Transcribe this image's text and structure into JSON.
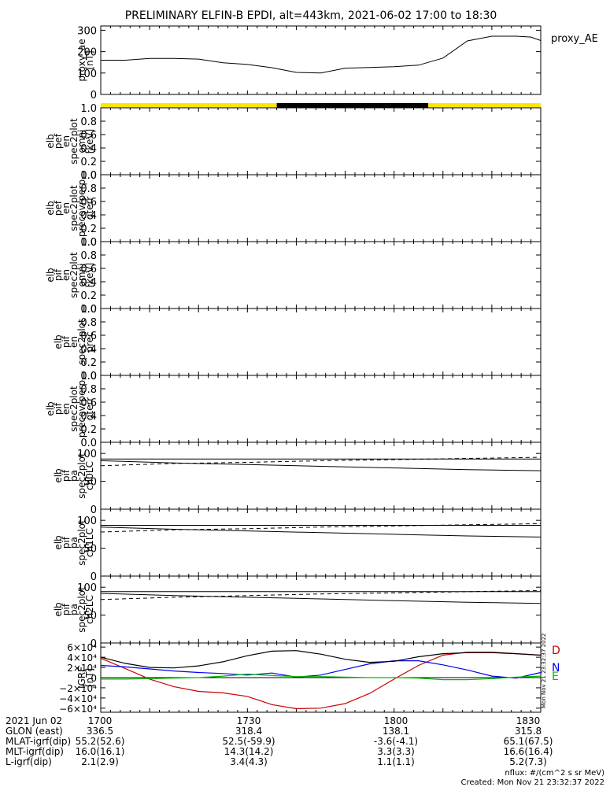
{
  "title": "PRELIMINARY ELFIN-B EPDI, alt=443km, 2021-06-02 17:00 to 18:30",
  "colors": {
    "day": "#ffe600",
    "night": "#000000",
    "D": "#cc0000",
    "N": "#0000ee",
    "E": "#00bb00",
    "line": "#000000"
  },
  "chart_data": [
    {
      "type": "line",
      "panel": "proxy_ae",
      "ylabel_lines": [
        "proxy_ae",
        "[nT]"
      ],
      "legend": "proxy_AE",
      "ylim": [
        0,
        320
      ],
      "yticks": [
        "300",
        "200",
        "100",
        "0"
      ],
      "x": [
        0,
        5,
        10,
        15,
        20,
        25,
        30,
        35,
        40,
        45,
        50,
        55,
        60,
        65,
        70,
        75,
        80,
        82,
        85,
        88,
        90
      ],
      "series": [
        {
          "values": [
            160,
            160,
            168,
            168,
            165,
            148,
            140,
            125,
            103,
            100,
            123,
            126,
            130,
            137,
            170,
            250,
            272,
            272,
            272,
            268,
            252
          ]
        }
      ]
    },
    {
      "type": "spectrogram",
      "panel": "sunlit_bar",
      "segments": [
        {
          "start": 0,
          "end": 36,
          "state": "day"
        },
        {
          "start": 36,
          "end": 67,
          "state": "night"
        },
        {
          "start": 67,
          "end": 90,
          "state": "day"
        }
      ]
    },
    {
      "type": "spectrogram",
      "panel": "pef_en_omni",
      "ylabel_lines": [
        "elb",
        "pef",
        "en",
        "spec2plot",
        "omni",
        "[keV]"
      ],
      "ylim": [
        0,
        1.0
      ],
      "yticks": [
        "1.0",
        "0.8",
        "0.6",
        "0.4",
        "0.2",
        "0.0"
      ]
    },
    {
      "type": "spectrogram",
      "panel": "pef_en_precovrperp",
      "ylabel_lines": [
        "elb",
        "pef",
        "en",
        "spec2plot",
        "precovrperp",
        "gterr"
      ],
      "ylim": [
        0,
        1.0
      ],
      "yticks": [
        "1.0",
        "0.8",
        "0.6",
        "0.4",
        "0.2",
        "0.0"
      ]
    },
    {
      "type": "spectrogram",
      "panel": "pif_en_omni",
      "ylabel_lines": [
        "elb",
        "pif",
        "en",
        "spec2plot",
        "omni",
        "[keV]"
      ],
      "ylim": [
        0,
        1.0
      ],
      "yticks": [
        "1.0",
        "0.8",
        "0.6",
        "0.4",
        "0.2",
        "0.0"
      ]
    },
    {
      "type": "spectrogram",
      "panel": "pif_en_prec",
      "ylabel_lines": [
        "elb",
        "pif",
        "en",
        "spec2plot",
        "prec"
      ],
      "ylim": [
        0,
        1.0
      ],
      "yticks": [
        "1.0",
        "0.8",
        "0.6",
        "0.4",
        "0.2",
        "0.0"
      ]
    },
    {
      "type": "spectrogram",
      "panel": "pif_en_precovrperp",
      "ylabel_lines": [
        "elb",
        "pif",
        "en",
        "spec2plot",
        "precovrperp",
        "gterr"
      ],
      "ylim": [
        0,
        1.0
      ],
      "yticks": [
        "1.0",
        "0.8",
        "0.6",
        "0.4",
        "0.2",
        "0.0"
      ]
    },
    {
      "type": "line",
      "panel": "pif_pa_ch0LC",
      "ylabel_lines": [
        "elb",
        "pif",
        "pa",
        "spec2plot",
        "ch0LC"
      ],
      "ylim": [
        0,
        120
      ],
      "yticks": [
        "100",
        "50",
        "0"
      ],
      "x": [
        0,
        90
      ],
      "series": [
        {
          "values": [
            90,
            90
          ]
        },
        {
          "x": [
            0,
            15,
            30,
            45,
            60,
            75,
            90
          ],
          "values": [
            87,
            83,
            80,
            77,
            74,
            71,
            69
          ]
        },
        {
          "x": [
            0,
            15,
            30,
            45,
            60,
            75,
            90
          ],
          "values": [
            78,
            82,
            84,
            87,
            89,
            91,
            93
          ],
          "dash": true
        }
      ]
    },
    {
      "type": "line",
      "panel": "pif_pa_ch1LC",
      "ylabel_lines": [
        "elb",
        "pif",
        "pa",
        "spec2plot",
        "ch1LC"
      ],
      "ylim": [
        0,
        120
      ],
      "yticks": [
        "100",
        "50",
        "0"
      ],
      "x": [
        0,
        90
      ],
      "series": [
        {
          "values": [
            91,
            91
          ]
        },
        {
          "x": [
            0,
            15,
            30,
            45,
            60,
            75,
            90
          ],
          "values": [
            88,
            84,
            81,
            78,
            75,
            72,
            70
          ]
        },
        {
          "x": [
            0,
            15,
            30,
            45,
            60,
            75,
            90
          ],
          "values": [
            79,
            83,
            85,
            88,
            90,
            92,
            94
          ],
          "dash": true
        }
      ]
    },
    {
      "type": "line",
      "panel": "pif_pa_ch2LC",
      "ylabel_lines": [
        "elb",
        "pif",
        "pa",
        "spec2plot",
        "ch2LC"
      ],
      "ylim": [
        0,
        120
      ],
      "yticks": [
        "100",
        "50",
        "0"
      ],
      "x": [
        0,
        90
      ],
      "series": [
        {
          "values": [
            92,
            92
          ]
        },
        {
          "x": [
            0,
            15,
            30,
            45,
            60,
            75,
            90
          ],
          "values": [
            89,
            85,
            82,
            79,
            76,
            73,
            71
          ]
        },
        {
          "x": [
            0,
            15,
            30,
            45,
            60,
            75,
            90
          ],
          "values": [
            78,
            82,
            85,
            88,
            90,
            92,
            94
          ],
          "dash": true
        }
      ]
    },
    {
      "type": "line",
      "panel": "igrf",
      "ylabel_lines": [
        "IGRF",
        "[nT]"
      ],
      "ylim": [
        -68000,
        68000
      ],
      "yticks": [
        "6×10⁴",
        "4×10⁴",
        "2×10⁴",
        "0",
        "−2×10⁴",
        "−4×10⁴",
        "−6×10⁴"
      ],
      "ytick_values": [
        60000,
        40000,
        20000,
        0,
        -20000,
        -40000,
        -60000
      ],
      "legend_labels": [
        "D",
        "N",
        "E"
      ],
      "side_text": "Mon Nov 21 23:32:37 2022",
      "series": [
        {
          "name": "D",
          "x": [
            0,
            5,
            10,
            15,
            20,
            25,
            30,
            35,
            40,
            45,
            50,
            55,
            60,
            65,
            70,
            75,
            80,
            85,
            90
          ],
          "values": [
            38000,
            18000,
            -3000,
            -18000,
            -27000,
            -30000,
            -37000,
            -53000,
            -61000,
            -60000,
            -51000,
            -31000,
            -3000,
            24000,
            44000,
            50000,
            50000,
            47000,
            44000
          ]
        },
        {
          "name": "N",
          "x": [
            0,
            5,
            10,
            15,
            20,
            25,
            30,
            35,
            40,
            45,
            50,
            55,
            60,
            65,
            70,
            75,
            80,
            85,
            90
          ],
          "values": [
            24000,
            21000,
            17000,
            13000,
            10000,
            8000,
            5000,
            9000,
            1000,
            5000,
            16000,
            27000,
            33000,
            33000,
            25000,
            15000,
            3000,
            -1000,
            10000
          ]
        },
        {
          "name": "E",
          "x": [
            0,
            5,
            10,
            15,
            20,
            25,
            30,
            35,
            40,
            45,
            50,
            55,
            60,
            65,
            70,
            75,
            80,
            85,
            90
          ],
          "values": [
            -3000,
            -3000,
            -2000,
            -1000,
            0,
            3000,
            7000,
            4000,
            2000,
            2000,
            1000,
            0,
            0,
            -1000,
            -4000,
            -4000,
            -2000,
            1000,
            3000
          ]
        },
        {
          "name": "",
          "x": [
            0,
            5,
            10,
            15,
            20,
            25,
            30,
            35,
            40,
            45,
            50,
            55,
            60,
            65,
            70,
            75,
            80,
            85,
            90
          ],
          "values": [
            40000,
            28000,
            20000,
            19000,
            23000,
            31000,
            43000,
            52000,
            53000,
            46000,
            36000,
            30000,
            32000,
            41000,
            47000,
            49000,
            49000,
            47000,
            44000
          ]
        }
      ]
    }
  ],
  "x_axis": {
    "range": [
      0,
      90
    ],
    "ticks": [
      {
        "x": 0,
        "label": "1700"
      },
      {
        "x": 30,
        "label": "1730"
      },
      {
        "x": 60,
        "label": "1800"
      },
      {
        "x": 90,
        "label": "1830"
      }
    ]
  },
  "footer_table": {
    "row_labels": [
      "2021 Jun 02",
      "GLON (east)",
      "MLAT-igrf(dip)",
      "MLT-igrf(dip)",
      "L-igrf(dip)"
    ],
    "columns": [
      [
        "1700",
        "336.5",
        "55.2(52.6)",
        "16.0(16.1)",
        "2.1(2.9)"
      ],
      [
        "1730",
        "318.4",
        "52.5(-59.9)",
        "14.3(14.2)",
        "3.4(4.3)"
      ],
      [
        "1800",
        "138.1",
        "-3.6(-4.1)",
        "3.3(3.3)",
        "1.1(1.1)"
      ],
      [
        "1830",
        "315.8",
        "65.1(67.5)",
        "16.6(16.4)",
        "5.2(7.3)"
      ]
    ]
  },
  "footnote": {
    "units": "nflux: #/(cm^2 s sr MeV)",
    "created": "Created: Mon Nov 21 23:32:37 2022"
  }
}
